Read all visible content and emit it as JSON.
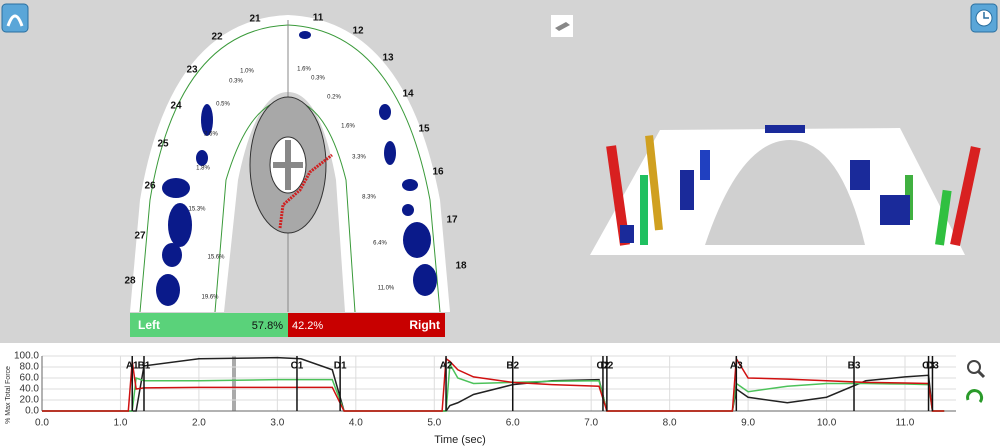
{
  "dental_arch": {
    "teeth": [
      "21",
      "11",
      "12",
      "13",
      "14",
      "15",
      "16",
      "17",
      "18",
      "22",
      "23",
      "24",
      "25",
      "26",
      "27",
      "28"
    ],
    "percentages": [
      "1.0%",
      "1.6%",
      "0.3%",
      "0.3%",
      "0.2%",
      "0.5%",
      "1.6%",
      "2.6%",
      "3.3%",
      "1.8%",
      "8.3%",
      "15.3%",
      "6.4%",
      "15.6%",
      "11.0%",
      "19.6%"
    ],
    "left_label": "Left",
    "left_value": "57.8%",
    "right_value": "42.2%",
    "right_label": "Right"
  },
  "chart_data": {
    "type": "line",
    "y_label": "% Max Total Force",
    "x_label": "Time (sec)",
    "x": [
      0,
      1.1,
      1.15,
      1.2,
      1.3,
      2.0,
      3.0,
      3.3,
      3.7,
      3.85,
      5.1,
      5.15,
      5.2,
      5.3,
      5.5,
      6.0,
      6.5,
      7.1,
      7.2,
      8.8,
      8.85,
      9.0,
      9.5,
      10.0,
      10.5,
      11.0,
      11.3,
      11.35,
      11.5
    ],
    "series": [
      {
        "color": "#222222",
        "values": [
          0,
          0,
          0,
          0,
          82,
          95,
          97,
          95,
          75,
          0,
          0,
          0,
          10,
          15,
          30,
          48,
          55,
          57,
          0,
          0,
          40,
          25,
          15,
          25,
          55,
          62,
          65,
          0,
          0
        ]
      },
      {
        "color": "#4cc25a",
        "values": [
          0,
          0,
          0,
          60,
          55,
          55,
          57,
          57,
          57,
          0,
          0,
          0,
          85,
          60,
          50,
          52,
          54,
          55,
          0,
          0,
          50,
          35,
          45,
          50,
          50,
          49,
          48,
          0,
          0
        ]
      },
      {
        "color": "#d01010",
        "values": [
          0,
          0,
          90,
          40,
          42,
          43,
          43,
          43,
          43,
          0,
          0,
          95,
          90,
          75,
          62,
          52,
          48,
          45,
          0,
          0,
          95,
          60,
          58,
          55,
          52,
          51,
          50,
          0,
          0
        ]
      }
    ],
    "markers": [
      {
        "label": "A1",
        "x": 1.15
      },
      {
        "label": "B1",
        "x": 1.3
      },
      {
        "label": "C1",
        "x": 3.25
      },
      {
        "label": "D1",
        "x": 3.8
      },
      {
        "label": "A2",
        "x": 5.15
      },
      {
        "label": "B2",
        "x": 6.0
      },
      {
        "label": "C2",
        "x": 7.15
      },
      {
        "label": "D2",
        "x": 7.2
      },
      {
        "label": "A3",
        "x": 8.85
      },
      {
        "label": "B3",
        "x": 10.35
      },
      {
        "label": "C3",
        "x": 11.3
      },
      {
        "label": "D3",
        "x": 11.35
      }
    ],
    "xlim": [
      0,
      11.65
    ],
    "xticks": [
      {
        "value": 0,
        "label": "0.0"
      },
      {
        "value": 1,
        "label": "1.0"
      },
      {
        "value": 2,
        "label": "2.0"
      },
      {
        "value": 3,
        "label": "3.0"
      },
      {
        "value": 4,
        "label": "4.0"
      },
      {
        "value": 5,
        "label": "5.0"
      },
      {
        "value": 6,
        "label": "6.0"
      },
      {
        "value": 7,
        "label": "7.0"
      },
      {
        "value": 8,
        "label": "8.0"
      },
      {
        "value": 9,
        "label": "9.0"
      },
      {
        "value": 10,
        "label": "10.0"
      },
      {
        "value": 11,
        "label": "11.0"
      }
    ],
    "ylim": [
      0,
      100
    ],
    "yticks": [
      {
        "value": 0,
        "label": "0.0"
      },
      {
        "value": 20,
        "label": "20.0"
      },
      {
        "value": 40,
        "label": "40.0"
      },
      {
        "value": 60,
        "label": "60.0"
      },
      {
        "value": 80,
        "label": "80.0"
      },
      {
        "value": 100,
        "label": "100.0"
      }
    ],
    "grid": true
  }
}
